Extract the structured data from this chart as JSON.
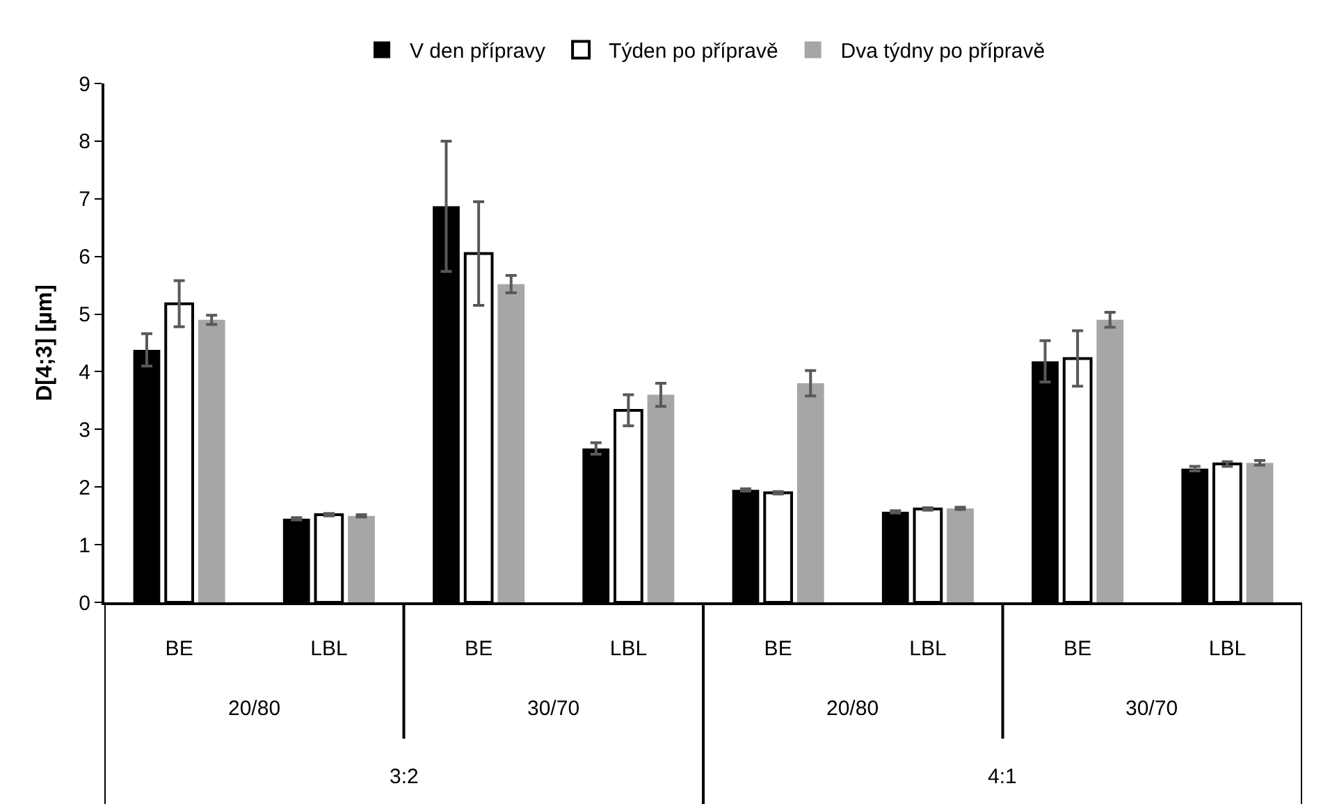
{
  "chart_data": {
    "type": "bar",
    "ylabel": "D[4;3] [µm]",
    "categories": [
      "BE",
      "LBL",
      "BE",
      "LBL",
      "BE",
      "LBL",
      "BE",
      "LBL"
    ],
    "annotations": [
      "20/80",
      "30/70",
      "20/80",
      "30/70",
      "3:2",
      "4:1"
    ],
    "series": [
      {
        "name": "V den přípravy",
        "color": "#000000",
        "values": [
          4.38,
          1.45,
          6.87,
          2.67,
          1.95,
          1.57,
          4.18,
          2.32
        ],
        "errors": [
          0.28,
          0.02,
          1.13,
          0.1,
          0.02,
          0.02,
          0.36,
          0.04
        ]
      },
      {
        "name": "Týden po přípravě",
        "color": "#ffffff",
        "values": [
          5.18,
          1.52,
          6.05,
          3.33,
          1.9,
          1.62,
          4.23,
          2.4
        ],
        "errors": [
          0.4,
          0.02,
          0.9,
          0.27,
          0.02,
          0.02,
          0.48,
          0.04
        ]
      },
      {
        "name": "Dva týdny po přípravě",
        "color": "#a6a6a6",
        "values": [
          4.9,
          1.5,
          5.52,
          3.6,
          3.8,
          1.63,
          4.9,
          2.42
        ],
        "errors": [
          0.08,
          0.02,
          0.15,
          0.2,
          0.22,
          0.02,
          0.13,
          0.04
        ]
      }
    ],
    "ylim": [
      0,
      9
    ],
    "yticks": [
      0,
      1,
      2,
      3,
      4,
      5,
      6,
      7,
      8,
      9
    ],
    "legend": "top"
  }
}
